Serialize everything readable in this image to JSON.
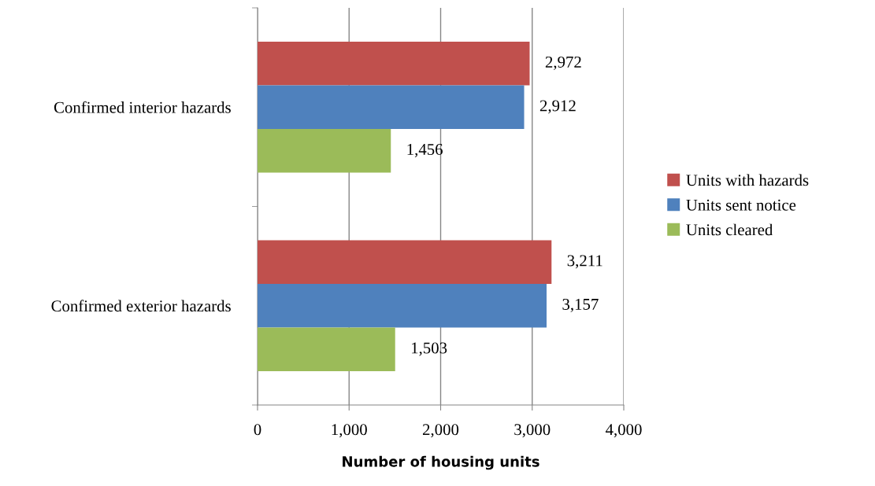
{
  "chart_data": {
    "type": "bar",
    "orientation": "horizontal",
    "categories": [
      "Confirmed interior hazards",
      "Confirmed exterior hazards"
    ],
    "series": [
      {
        "name": "Units with hazards",
        "color": "#c0504d",
        "values": [
          2972,
          3211
        ],
        "value_labels": [
          "2,972",
          "3,211"
        ]
      },
      {
        "name": "Units sent notice",
        "color": "#4f81bd",
        "values": [
          2912,
          3157
        ],
        "value_labels": [
          "2,912",
          "3,157"
        ]
      },
      {
        "name": "Units cleared",
        "color": "#9bbb59",
        "values": [
          1456,
          1503
        ],
        "value_labels": [
          "1,456",
          "1,503"
        ]
      }
    ],
    "xlabel": "Number of housing units",
    "xlim": [
      0,
      4000
    ],
    "xticks": [
      0,
      {
        "value": 1000,
        "label": "1,000"
      },
      {
        "value": 2000,
        "label": "2,000"
      },
      {
        "value": 3000,
        "label": "3,000"
      },
      {
        "value": 4000,
        "label": "4,000"
      }
    ],
    "grid": "x",
    "legend": "right"
  }
}
